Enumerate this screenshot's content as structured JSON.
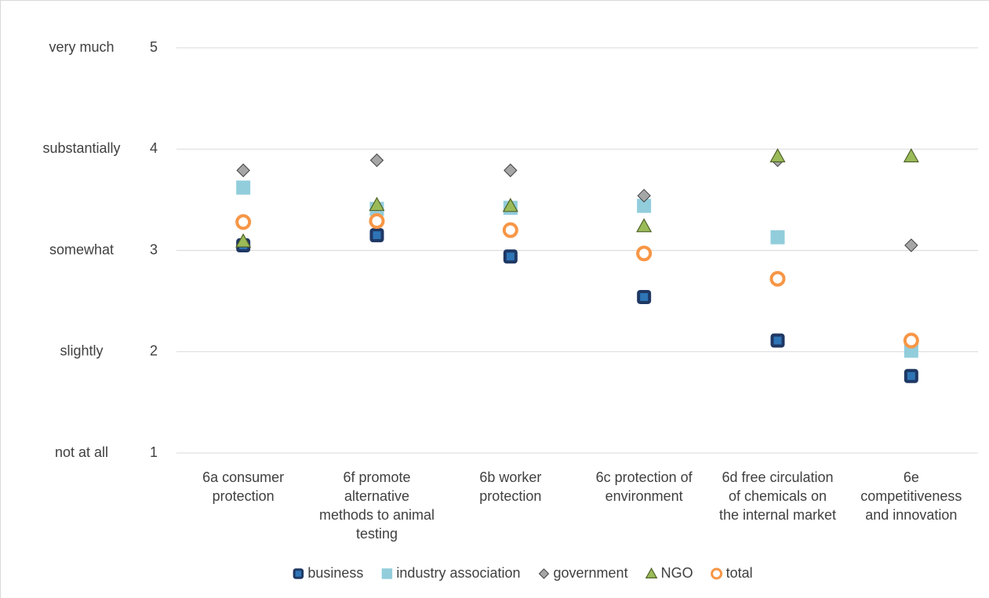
{
  "chart_data": {
    "type": "scatter",
    "categories": [
      "6a consumer protection",
      "6f promote alternative methods to animal testing",
      "6b worker protection",
      "6c protection of environment",
      "6d free circulation of chemicals on the internal market",
      "6e competitiveness and innovation"
    ],
    "ylim": [
      1,
      5
    ],
    "yticks": [
      1,
      2,
      3,
      4,
      5
    ],
    "ytick_texts": [
      "not at all",
      "slightly",
      "somewhat",
      "substantially",
      "very much"
    ],
    "grid": true,
    "legend": "bottom",
    "series": [
      {
        "name": "business",
        "marker": "square",
        "color": "#2e75b6",
        "edgecolor": "#1f3864",
        "values": [
          3.05,
          3.15,
          2.94,
          2.54,
          2.11,
          1.76
        ]
      },
      {
        "name": "industry association",
        "marker": "square",
        "color": "#92cddc",
        "edgecolor": "#92cddc",
        "values": [
          3.62,
          3.41,
          3.42,
          3.44,
          3.13,
          2.01
        ]
      },
      {
        "name": "government",
        "marker": "diamond",
        "color": "#a6a6a6",
        "edgecolor": "#404040",
        "values": [
          3.79,
          3.89,
          3.79,
          3.54,
          3.89,
          3.05
        ]
      },
      {
        "name": "NGO",
        "marker": "triangle",
        "color": "#9bbb59",
        "edgecolor": "#4f6228",
        "values": [
          3.09,
          3.45,
          3.44,
          3.24,
          3.93,
          3.93
        ]
      },
      {
        "name": "total",
        "marker": "circle",
        "color": "#ffffff",
        "edgecolor": "#f79646",
        "values": [
          3.28,
          3.29,
          3.2,
          2.97,
          2.72,
          2.11
        ]
      }
    ]
  }
}
